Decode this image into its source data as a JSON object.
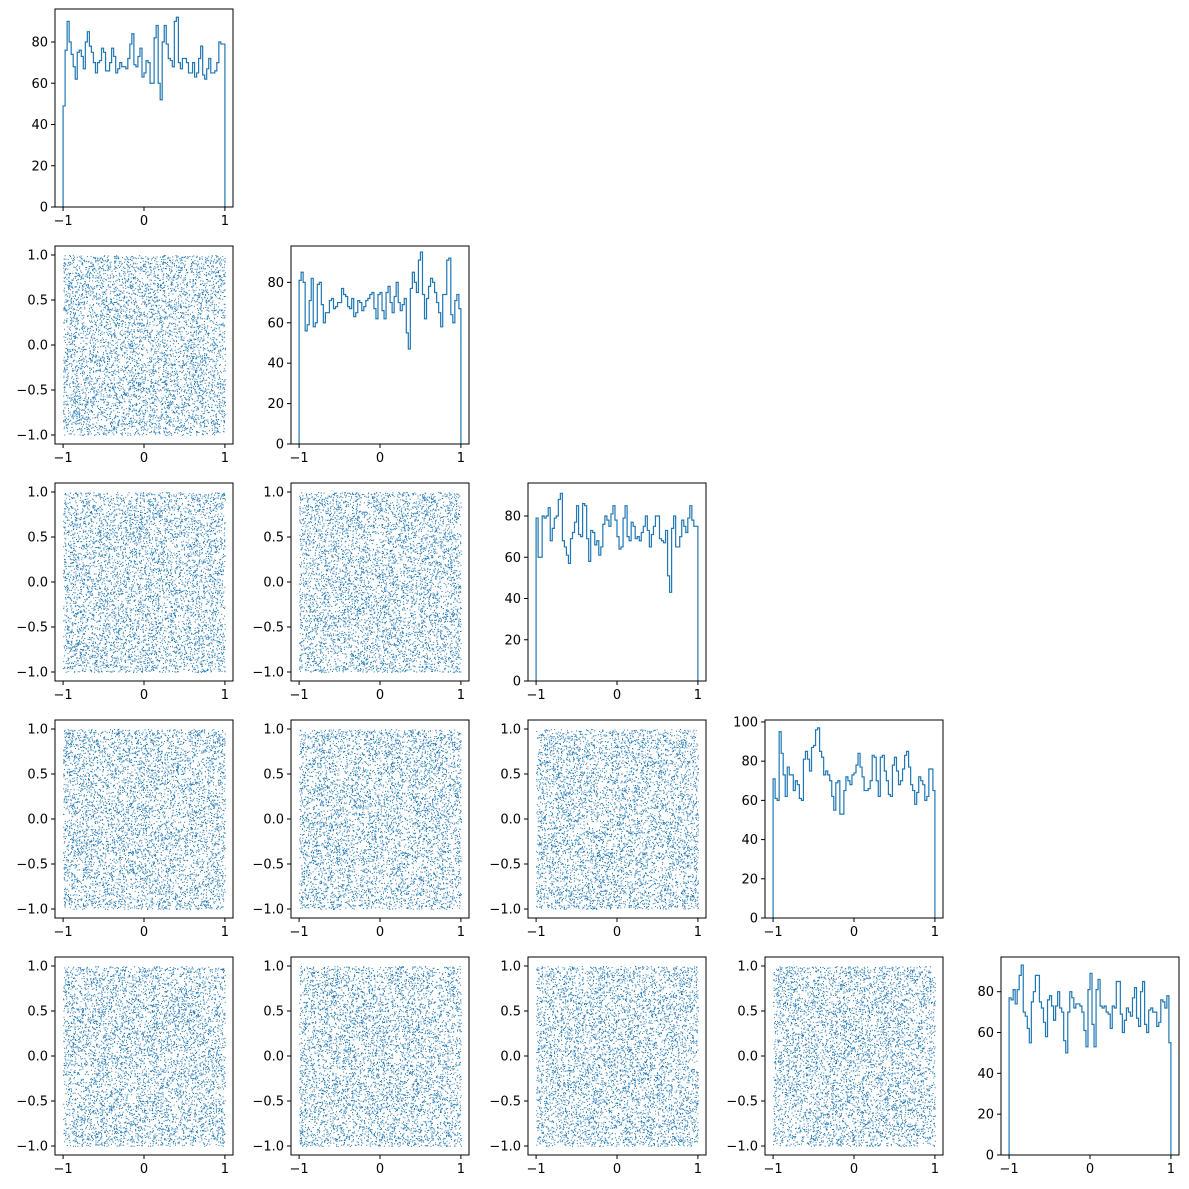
{
  "figure": {
    "type": "corner_plot",
    "dimensions": 5,
    "color": "#1f77b4"
  },
  "chart_data": {
    "type": "corner",
    "variables": 5,
    "x_ticks": [
      -1,
      0,
      1
    ],
    "scatter_y_ticks": [
      -1.0,
      -0.5,
      0.0,
      0.5,
      1.0
    ],
    "scatter_range": [
      -1,
      1
    ],
    "histograms": [
      {
        "variable": 1,
        "bins": 80,
        "range": [
          -1,
          1
        ],
        "ylim": [
          0,
          96
        ],
        "y_ticks": [
          0,
          20,
          40,
          60,
          80
        ],
        "anchors": [
          [
            -1.0,
            49
          ],
          [
            -0.96,
            76
          ],
          [
            -0.94,
            90
          ],
          [
            -0.9,
            80
          ],
          [
            -0.85,
            62
          ],
          [
            -0.8,
            75
          ],
          [
            -0.75,
            67
          ],
          [
            -0.7,
            85
          ],
          [
            -0.65,
            75
          ],
          [
            -0.6,
            65
          ],
          [
            -0.55,
            71
          ],
          [
            -0.5,
            75
          ],
          [
            -0.45,
            66
          ],
          [
            -0.4,
            77
          ],
          [
            -0.35,
            65
          ],
          [
            -0.3,
            70
          ],
          [
            -0.25,
            68
          ],
          [
            -0.2,
            72
          ],
          [
            -0.15,
            84
          ],
          [
            -0.1,
            68
          ],
          [
            -0.05,
            77
          ],
          [
            0.0,
            65
          ],
          [
            0.05,
            70
          ],
          [
            0.1,
            60
          ],
          [
            0.15,
            88
          ],
          [
            0.2,
            52
          ],
          [
            0.25,
            88
          ],
          [
            0.3,
            72
          ],
          [
            0.35,
            68
          ],
          [
            0.4,
            92
          ],
          [
            0.45,
            67
          ],
          [
            0.5,
            72
          ],
          [
            0.55,
            65
          ],
          [
            0.6,
            70
          ],
          [
            0.65,
            65
          ],
          [
            0.7,
            78
          ],
          [
            0.75,
            62
          ],
          [
            0.8,
            72
          ],
          [
            0.85,
            65
          ],
          [
            0.9,
            70
          ],
          [
            0.95,
            79
          ],
          [
            1.0,
            79
          ]
        ]
      },
      {
        "variable": 2,
        "bins": 80,
        "range": [
          -1,
          1
        ],
        "ylim": [
          0,
          98
        ],
        "y_ticks": [
          0,
          20,
          40,
          60,
          80
        ],
        "anchors": [
          [
            -1.0,
            81
          ],
          [
            -0.95,
            80
          ],
          [
            -0.9,
            56
          ],
          [
            -0.85,
            82
          ],
          [
            -0.8,
            58
          ],
          [
            -0.75,
            80
          ],
          [
            -0.7,
            60
          ],
          [
            -0.65,
            65
          ],
          [
            -0.6,
            72
          ],
          [
            -0.55,
            68
          ],
          [
            -0.5,
            70
          ],
          [
            -0.45,
            74
          ],
          [
            -0.4,
            68
          ],
          [
            -0.35,
            72
          ],
          [
            -0.3,
            65
          ],
          [
            -0.25,
            70
          ],
          [
            -0.2,
            68
          ],
          [
            -0.15,
            72
          ],
          [
            -0.1,
            75
          ],
          [
            -0.05,
            62
          ],
          [
            0.0,
            75
          ],
          [
            0.05,
            62
          ],
          [
            0.1,
            78
          ],
          [
            0.15,
            65
          ],
          [
            0.2,
            80
          ],
          [
            0.25,
            66
          ],
          [
            0.3,
            72
          ],
          [
            0.35,
            47
          ],
          [
            0.4,
            85
          ],
          [
            0.45,
            75
          ],
          [
            0.5,
            95
          ],
          [
            0.55,
            62
          ],
          [
            0.6,
            78
          ],
          [
            0.65,
            80
          ],
          [
            0.7,
            70
          ],
          [
            0.75,
            58
          ],
          [
            0.8,
            74
          ],
          [
            0.85,
            92
          ],
          [
            0.9,
            60
          ],
          [
            0.95,
            74
          ],
          [
            1.0,
            67
          ]
        ]
      },
      {
        "variable": 3,
        "bins": 80,
        "range": [
          -1,
          1
        ],
        "ylim": [
          0,
          96
        ],
        "y_ticks": [
          0,
          20,
          40,
          60,
          80
        ],
        "anchors": [
          [
            -1.0,
            79
          ],
          [
            -0.95,
            60
          ],
          [
            -0.9,
            80
          ],
          [
            -0.85,
            84
          ],
          [
            -0.8,
            68
          ],
          [
            -0.75,
            80
          ],
          [
            -0.7,
            91
          ],
          [
            -0.65,
            65
          ],
          [
            -0.6,
            57
          ],
          [
            -0.55,
            72
          ],
          [
            -0.5,
            85
          ],
          [
            -0.45,
            70
          ],
          [
            -0.4,
            85
          ],
          [
            -0.35,
            58
          ],
          [
            -0.3,
            72
          ],
          [
            -0.25,
            68
          ],
          [
            -0.2,
            65
          ],
          [
            -0.15,
            80
          ],
          [
            -0.1,
            75
          ],
          [
            -0.05,
            85
          ],
          [
            0.0,
            70
          ],
          [
            0.05,
            65
          ],
          [
            0.1,
            85
          ],
          [
            0.15,
            68
          ],
          [
            0.2,
            75
          ],
          [
            0.25,
            70
          ],
          [
            0.3,
            72
          ],
          [
            0.35,
            80
          ],
          [
            0.4,
            65
          ],
          [
            0.45,
            75
          ],
          [
            0.5,
            80
          ],
          [
            0.55,
            68
          ],
          [
            0.6,
            73
          ],
          [
            0.65,
            43
          ],
          [
            0.7,
            80
          ],
          [
            0.75,
            65
          ],
          [
            0.8,
            78
          ],
          [
            0.85,
            72
          ],
          [
            0.9,
            85
          ],
          [
            0.95,
            75
          ],
          [
            1.0,
            75
          ]
        ]
      },
      {
        "variable": 4,
        "bins": 80,
        "range": [
          -1,
          1
        ],
        "ylim": [
          0,
          101
        ],
        "y_ticks": [
          0,
          20,
          40,
          60,
          80,
          100
        ],
        "anchors": [
          [
            -1.0,
            71
          ],
          [
            -0.95,
            60
          ],
          [
            -0.9,
            95
          ],
          [
            -0.85,
            62
          ],
          [
            -0.8,
            77
          ],
          [
            -0.75,
            65
          ],
          [
            -0.7,
            68
          ],
          [
            -0.65,
            60
          ],
          [
            -0.6,
            85
          ],
          [
            -0.55,
            75
          ],
          [
            -0.5,
            88
          ],
          [
            -0.45,
            97
          ],
          [
            -0.4,
            82
          ],
          [
            -0.35,
            75
          ],
          [
            -0.3,
            70
          ],
          [
            -0.25,
            55
          ],
          [
            -0.2,
            70
          ],
          [
            -0.15,
            53
          ],
          [
            -0.1,
            72
          ],
          [
            -0.05,
            68
          ],
          [
            0.0,
            74
          ],
          [
            0.05,
            84
          ],
          [
            0.1,
            72
          ],
          [
            0.15,
            65
          ],
          [
            0.2,
            70
          ],
          [
            0.25,
            82
          ],
          [
            0.3,
            62
          ],
          [
            0.35,
            83
          ],
          [
            0.4,
            70
          ],
          [
            0.45,
            62
          ],
          [
            0.5,
            82
          ],
          [
            0.55,
            68
          ],
          [
            0.6,
            76
          ],
          [
            0.65,
            85
          ],
          [
            0.7,
            68
          ],
          [
            0.75,
            58
          ],
          [
            0.8,
            72
          ],
          [
            0.85,
            68
          ],
          [
            0.9,
            62
          ],
          [
            0.95,
            76
          ],
          [
            1.0,
            65
          ]
        ]
      },
      {
        "variable": 5,
        "bins": 80,
        "range": [
          -1,
          1
        ],
        "ylim": [
          0,
          97
        ],
        "y_ticks": [
          0,
          20,
          40,
          60,
          80
        ],
        "anchors": [
          [
            -1.0,
            77
          ],
          [
            -0.95,
            81
          ],
          [
            -0.9,
            74
          ],
          [
            -0.85,
            93
          ],
          [
            -0.8,
            70
          ],
          [
            -0.75,
            55
          ],
          [
            -0.7,
            80
          ],
          [
            -0.65,
            88
          ],
          [
            -0.6,
            72
          ],
          [
            -0.55,
            58
          ],
          [
            -0.5,
            78
          ],
          [
            -0.45,
            66
          ],
          [
            -0.4,
            80
          ],
          [
            -0.35,
            70
          ],
          [
            -0.3,
            50
          ],
          [
            -0.25,
            80
          ],
          [
            -0.2,
            72
          ],
          [
            -0.15,
            74
          ],
          [
            -0.1,
            70
          ],
          [
            -0.05,
            53
          ],
          [
            0.0,
            89
          ],
          [
            0.05,
            53
          ],
          [
            0.1,
            86
          ],
          [
            0.15,
            72
          ],
          [
            0.2,
            70
          ],
          [
            0.25,
            62
          ],
          [
            0.3,
            72
          ],
          [
            0.35,
            85
          ],
          [
            0.4,
            60
          ],
          [
            0.45,
            72
          ],
          [
            0.5,
            68
          ],
          [
            0.55,
            82
          ],
          [
            0.6,
            63
          ],
          [
            0.65,
            85
          ],
          [
            0.7,
            60
          ],
          [
            0.75,
            72
          ],
          [
            0.8,
            70
          ],
          [
            0.85,
            65
          ],
          [
            0.9,
            75
          ],
          [
            0.95,
            78
          ],
          [
            1.0,
            55
          ]
        ]
      }
    ],
    "scatter": {
      "distribution": "uniform",
      "points_per_panel": 5600,
      "x_range": [
        -1,
        1
      ],
      "y_range": [
        -1,
        1
      ]
    }
  }
}
